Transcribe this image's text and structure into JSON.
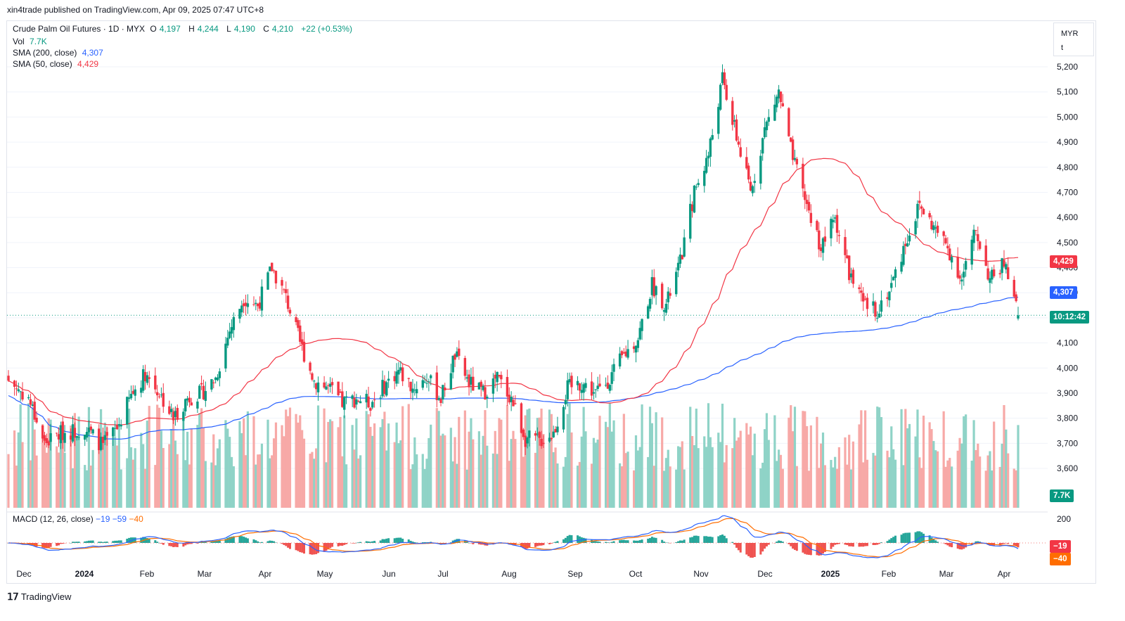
{
  "header": {
    "published": "xin4trade published on TradingView.com, Apr 09, 2025 07:47 UTC+8"
  },
  "legend": {
    "symbol": "Crude Palm Oil Futures · 1D · MYX",
    "o_label": "O",
    "o": "4,197",
    "h_label": "H",
    "h": "4,244",
    "l_label": "L",
    "l": "4,190",
    "c_label": "C",
    "c": "4,210",
    "change": "+22 (+0.53%)",
    "vol_label": "Vol",
    "vol": "7.7K",
    "sma200_label": "SMA (200, close)",
    "sma200": "4,307",
    "sma50_label": "SMA (50, close)",
    "sma50": "4,429"
  },
  "macd_legend": {
    "label": "MACD (12, 26, close)",
    "macd": "−19",
    "signal": "−59",
    "hist": "−40"
  },
  "scale": {
    "currency": "MYR",
    "unit": "t"
  },
  "badges": {
    "sma50": "4,429",
    "sma200": "4,307",
    "countdown": "10:12:42",
    "vol": "7.7K",
    "macd": "−19",
    "hist": "−40"
  },
  "footer": {
    "brand": "TradingView"
  },
  "colors": {
    "up": "#089981",
    "down": "#f23645",
    "sma50": "#f23645",
    "sma200": "#2962ff",
    "macd": "#2962ff",
    "signal": "#ff6d00"
  },
  "chart_data": {
    "type": "candlestick",
    "title": "Crude Palm Oil Futures · 1D · MYX",
    "y_axis": {
      "ticks": [
        5200,
        5100,
        5000,
        4900,
        4800,
        4700,
        4600,
        4500,
        4400,
        4300,
        4200,
        4100,
        4000,
        3900,
        3800,
        3700,
        3600
      ],
      "range": [
        3550,
        5250
      ]
    },
    "x_axis": {
      "tick_labels": [
        "Dec",
        "2024",
        "Feb",
        "Mar",
        "Apr",
        "May",
        "Jun",
        "Jul",
        "Aug",
        "Sep",
        "Oct",
        "Nov",
        "Dec",
        "2025",
        "Feb",
        "Mar",
        "Apr"
      ]
    },
    "macd_axis": {
      "ticks": [
        200
      ]
    },
    "last": {
      "open": 4197,
      "high": 4244,
      "low": 4190,
      "close": 4210,
      "change": 22,
      "change_pct": 0.53,
      "volume": "7.7K"
    },
    "close_series": [
      [
        "2023-11-24",
        3950
      ],
      [
        "2023-12-04",
        3880
      ],
      [
        "2023-12-12",
        3700
      ],
      [
        "2023-12-20",
        3740
      ],
      [
        "2024-01-01",
        3760
      ],
      [
        "2024-01-10",
        3690
      ],
      [
        "2024-01-17",
        3760
      ],
      [
        "2024-01-24",
        3890
      ],
      [
        "2024-01-31",
        3980
      ],
      [
        "2024-02-07",
        3900
      ],
      [
        "2024-02-14",
        3800
      ],
      [
        "2024-02-21",
        3880
      ],
      [
        "2024-02-28",
        3900
      ],
      [
        "2024-03-06",
        3960
      ],
      [
        "2024-03-13",
        4150
      ],
      [
        "2024-03-20",
        4280
      ],
      [
        "2024-03-27",
        4250
      ],
      [
        "2024-04-03",
        4400
      ],
      [
        "2024-04-10",
        4280
      ],
      [
        "2024-04-17",
        4100
      ],
      [
        "2024-04-24",
        3950
      ],
      [
        "2024-05-01",
        3920
      ],
      [
        "2024-05-08",
        3860
      ],
      [
        "2024-05-15",
        3880
      ],
      [
        "2024-05-22",
        3860
      ],
      [
        "2024-05-29",
        3930
      ],
      [
        "2024-06-05",
        3990
      ],
      [
        "2024-06-12",
        3920
      ],
      [
        "2024-06-19",
        3960
      ],
      [
        "2024-06-26",
        3880
      ],
      [
        "2024-07-03",
        4050
      ],
      [
        "2024-07-10",
        3940
      ],
      [
        "2024-07-17",
        3900
      ],
      [
        "2024-07-24",
        3960
      ],
      [
        "2024-07-31",
        3880
      ],
      [
        "2024-08-07",
        3720
      ],
      [
        "2024-08-14",
        3710
      ],
      [
        "2024-08-21",
        3740
      ],
      [
        "2024-08-28",
        3920
      ],
      [
        "2024-09-04",
        3940
      ],
      [
        "2024-09-11",
        3900
      ],
      [
        "2024-09-18",
        3960
      ],
      [
        "2024-09-25",
        4050
      ],
      [
        "2024-10-02",
        4120
      ],
      [
        "2024-10-09",
        4330
      ],
      [
        "2024-10-16",
        4250
      ],
      [
        "2024-10-23",
        4420
      ],
      [
        "2024-10-30",
        4700
      ],
      [
        "2024-11-06",
        4850
      ],
      [
        "2024-11-13",
        5150
      ],
      [
        "2024-11-20",
        4920
      ],
      [
        "2024-11-27",
        4700
      ],
      [
        "2024-12-04",
        4950
      ],
      [
        "2024-12-11",
        5100
      ],
      [
        "2024-12-18",
        4830
      ],
      [
        "2024-12-25",
        4650
      ],
      [
        "2025-01-01",
        4480
      ],
      [
        "2025-01-08",
        4600
      ],
      [
        "2025-01-15",
        4380
      ],
      [
        "2025-01-22",
        4250
      ],
      [
        "2025-01-29",
        4230
      ],
      [
        "2025-02-05",
        4330
      ],
      [
        "2025-02-12",
        4500
      ],
      [
        "2025-02-19",
        4650
      ],
      [
        "2025-02-26",
        4560
      ],
      [
        "2025-03-05",
        4480
      ],
      [
        "2025-03-12",
        4350
      ],
      [
        "2025-03-19",
        4550
      ],
      [
        "2025-03-26",
        4350
      ],
      [
        "2025-04-02",
        4420
      ],
      [
        "2025-04-09",
        4210
      ]
    ],
    "series": [
      {
        "name": "SMA (200, close)",
        "last": 4307
      },
      {
        "name": "SMA (50, close)",
        "last": 4429
      },
      {
        "name": "Vol",
        "last": "7.7K"
      },
      {
        "name": "MACD (12, 26, close)",
        "macd": -19,
        "signal": -59,
        "histogram": -40
      }
    ]
  }
}
